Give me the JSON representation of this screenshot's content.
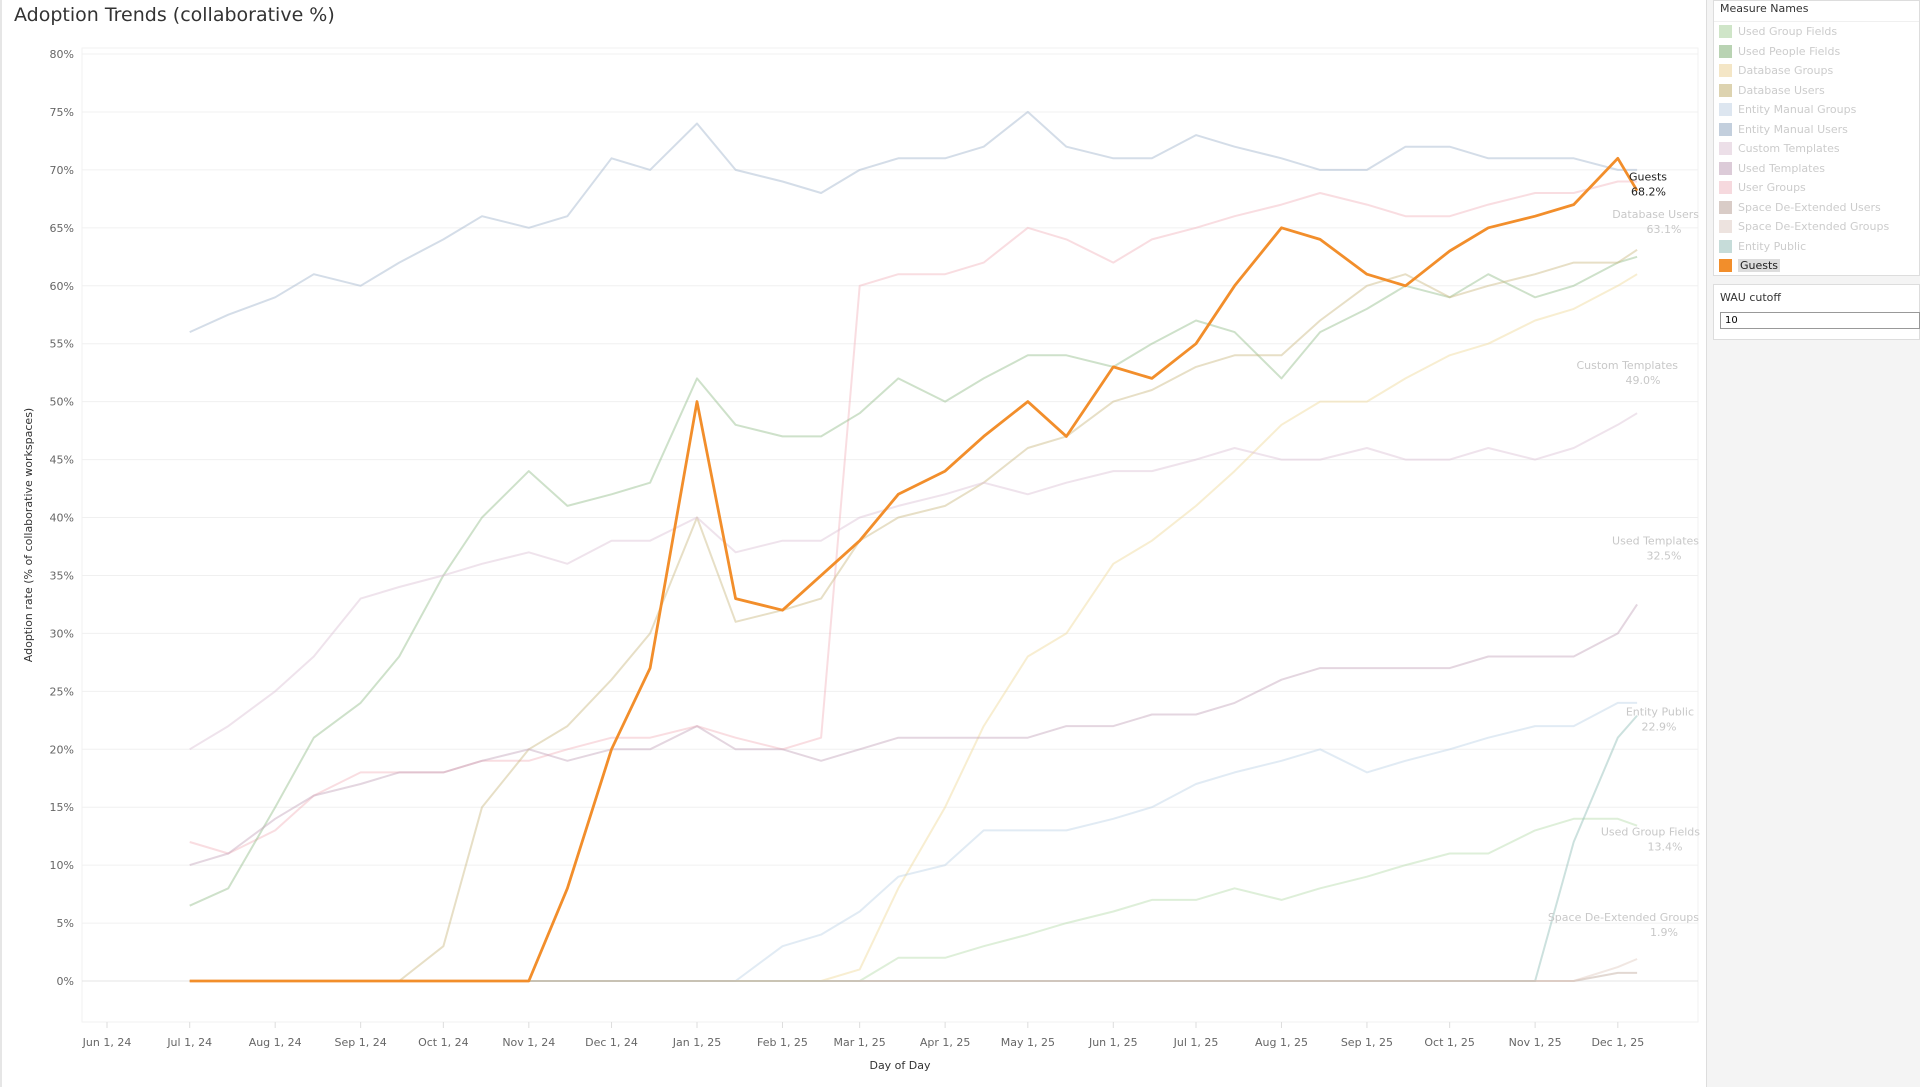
{
  "title": "Adoption Trends (collaborative %)",
  "legend": {
    "title": "Measure Names",
    "items": [
      {
        "label": "Used Group Fields",
        "color": "#cfe5c8"
      },
      {
        "label": "Used People Fields",
        "color": "#b9d3b3"
      },
      {
        "label": "Database Groups",
        "color": "#f4e6c6"
      },
      {
        "label": "Database Users",
        "color": "#ddd3b0"
      },
      {
        "label": "Entity Manual Groups",
        "color": "#dde6f0"
      },
      {
        "label": "Entity Manual Users",
        "color": "#c3cfdd"
      },
      {
        "label": "Custom Templates",
        "color": "#ecdfe8"
      },
      {
        "label": "Used Templates",
        "color": "#dccbd8"
      },
      {
        "label": "User Groups",
        "color": "#f6d9de"
      },
      {
        "label": "Space De-Extended Users",
        "color": "#d9ccc7"
      },
      {
        "label": "Space De-Extended Groups",
        "color": "#ede3df"
      },
      {
        "label": "Entity Public",
        "color": "#c6dcd9"
      },
      {
        "label": "Guests",
        "color": "#f28e2b"
      }
    ]
  },
  "wau": {
    "title": "WAU cutoff",
    "value": "10"
  },
  "chart_data": {
    "type": "line",
    "title": "Adoption Trends (collaborative %)",
    "xlabel": "Day of Day",
    "ylabel": "Adoption rate (% of collaborative workspaces)",
    "ylim": [
      -4,
      80
    ],
    "yticks": [
      "0%",
      "5%",
      "10%",
      "15%",
      "20%",
      "25%",
      "30%",
      "35%",
      "40%",
      "45%",
      "50%",
      "55%",
      "60%",
      "65%",
      "70%",
      "75%",
      "80%"
    ],
    "xticks": [
      {
        "date": "2024-06-01",
        "label": "Jun 1, 24"
      },
      {
        "date": "2024-07-01",
        "label": "Jul 1, 24"
      },
      {
        "date": "2024-08-01",
        "label": "Aug 1, 24"
      },
      {
        "date": "2024-09-01",
        "label": "Sep 1, 24"
      },
      {
        "date": "2024-10-01",
        "label": "Oct 1, 24"
      },
      {
        "date": "2024-11-01",
        "label": "Nov 1, 24"
      },
      {
        "date": "2024-12-01",
        "label": "Dec 1, 24"
      },
      {
        "date": "2025-01-01",
        "label": "Jan 1, 25"
      },
      {
        "date": "2025-02-01",
        "label": "Feb 1, 25"
      },
      {
        "date": "2025-03-01",
        "label": "Mar 1, 25"
      },
      {
        "date": "2025-04-01",
        "label": "Apr 1, 25"
      },
      {
        "date": "2025-05-01",
        "label": "May 1, 25"
      },
      {
        "date": "2025-06-01",
        "label": "Jun 1, 25"
      },
      {
        "date": "2025-07-01",
        "label": "Jul 1, 25"
      },
      {
        "date": "2025-08-01",
        "label": "Aug 1, 25"
      },
      {
        "date": "2025-09-01",
        "label": "Sep 1, 25"
      },
      {
        "date": "2025-10-01",
        "label": "Oct 1, 25"
      },
      {
        "date": "2025-11-01",
        "label": "Nov 1, 25"
      },
      {
        "date": "2025-12-01",
        "label": "Dec 1, 25"
      }
    ],
    "x": [
      "2024-07-01",
      "2024-07-15",
      "2024-08-01",
      "2024-08-15",
      "2024-09-01",
      "2024-09-15",
      "2024-10-01",
      "2024-10-15",
      "2024-11-01",
      "2024-11-15",
      "2024-12-01",
      "2024-12-15",
      "2025-01-01",
      "2025-01-15",
      "2025-02-01",
      "2025-02-15",
      "2025-03-01",
      "2025-03-15",
      "2025-04-01",
      "2025-04-15",
      "2025-05-01",
      "2025-05-15",
      "2025-06-01",
      "2025-06-15",
      "2025-07-01",
      "2025-07-15",
      "2025-08-01",
      "2025-08-15",
      "2025-09-01",
      "2025-09-15",
      "2025-10-01",
      "2025-10-15",
      "2025-11-01",
      "2025-11-15",
      "2025-12-01",
      "2025-12-08"
    ],
    "series": [
      {
        "name": "Entity Manual Users",
        "color": "#9fb3cc",
        "highlight": false,
        "values": [
          56,
          57.5,
          59,
          61,
          60,
          62,
          64,
          66,
          65,
          66,
          71,
          70,
          74,
          70,
          69,
          68,
          70,
          71,
          71,
          72,
          75,
          72,
          71,
          71,
          73,
          72,
          71,
          70,
          70,
          72,
          72,
          71,
          71,
          71,
          70,
          70
        ]
      },
      {
        "name": "User Groups",
        "color": "#f2b3bd",
        "highlight": false,
        "values": [
          12,
          11,
          13,
          16,
          18,
          18,
          18,
          19,
          19,
          20,
          21,
          21,
          22,
          21,
          20,
          21,
          60,
          61,
          61,
          62,
          65,
          64,
          62,
          64,
          65,
          66,
          67,
          68,
          67,
          66,
          66,
          67,
          68,
          68,
          69,
          69
        ]
      },
      {
        "name": "Used People Fields",
        "color": "#93bd8a",
        "highlight": false,
        "values": [
          6.5,
          8,
          15,
          21,
          24,
          28,
          35,
          40,
          44,
          41,
          42,
          43,
          52,
          48,
          47,
          47,
          49,
          52,
          50,
          52,
          54,
          54,
          53,
          55,
          57,
          56,
          52,
          56,
          58,
          60,
          59,
          61,
          59,
          60,
          62,
          62.5
        ]
      },
      {
        "name": "Database Users",
        "color": "#c9b981",
        "highlight": false,
        "values": [
          0,
          0,
          0,
          0,
          0,
          0,
          3,
          15,
          20,
          22,
          26,
          30,
          40,
          31,
          32,
          33,
          38,
          40,
          41,
          43,
          46,
          47,
          50,
          51,
          53,
          54,
          54,
          57,
          60,
          61,
          59,
          60,
          61,
          62,
          62,
          63.1
        ]
      },
      {
        "name": "Database Groups",
        "color": "#f0d99a",
        "highlight": false,
        "values": [
          0,
          0,
          0,
          0,
          0,
          0,
          0,
          0,
          0,
          0,
          0,
          0,
          0,
          0,
          0,
          0,
          1,
          8,
          15,
          22,
          28,
          30,
          36,
          38,
          41,
          44,
          48,
          50,
          50,
          52,
          54,
          55,
          57,
          58,
          60,
          61
        ]
      },
      {
        "name": "Custom Templates",
        "color": "#dcc0d4",
        "highlight": false,
        "values": [
          20,
          22,
          25,
          28,
          33,
          34,
          35,
          36,
          37,
          36,
          38,
          38,
          40,
          37,
          38,
          38,
          40,
          41,
          42,
          43,
          42,
          43,
          44,
          44,
          45,
          46,
          45,
          45,
          46,
          45,
          45,
          46,
          45,
          46,
          48,
          49.0
        ]
      },
      {
        "name": "Used Templates",
        "color": "#c4a3bb",
        "highlight": false,
        "values": [
          10,
          11,
          14,
          16,
          17,
          18,
          18,
          19,
          20,
          19,
          20,
          20,
          22,
          20,
          20,
          19,
          20,
          21,
          21,
          21,
          21,
          22,
          22,
          23,
          23,
          24,
          26,
          27,
          27,
          27,
          27,
          28,
          28,
          28,
          30,
          32.5
        ]
      },
      {
        "name": "Entity Manual Groups",
        "color": "#bcd2e6",
        "highlight": false,
        "values": [
          0,
          0,
          0,
          0,
          0,
          0,
          0,
          0,
          0,
          0,
          0,
          0,
          0,
          0,
          3,
          4,
          6,
          9,
          10,
          13,
          13,
          13,
          14,
          15,
          17,
          18,
          19,
          20,
          18,
          19,
          20,
          21,
          22,
          22,
          24,
          24
        ]
      },
      {
        "name": "Used Group Fields",
        "color": "#b6dbab",
        "highlight": false,
        "values": [
          0,
          0,
          0,
          0,
          0,
          0,
          0,
          0,
          0,
          0,
          0,
          0,
          0,
          0,
          0,
          0,
          0,
          2,
          2,
          3,
          4,
          5,
          6,
          7,
          7,
          8,
          7,
          8,
          9,
          10,
          11,
          11,
          13,
          14,
          14,
          13.4
        ]
      },
      {
        "name": "Entity Public",
        "color": "#8fbcb6",
        "highlight": false,
        "values": [
          0,
          0,
          0,
          0,
          0,
          0,
          0,
          0,
          0,
          0,
          0,
          0,
          0,
          0,
          0,
          0,
          0,
          0,
          0,
          0,
          0,
          0,
          0,
          0,
          0,
          0,
          0,
          0,
          0,
          0,
          0,
          0,
          0,
          12,
          21,
          22.9
        ]
      },
      {
        "name": "Space De-Extended Users",
        "color": "#bfa89c",
        "highlight": false,
        "values": [
          0,
          0,
          0,
          0,
          0,
          0,
          0,
          0,
          0,
          0,
          0,
          0,
          0,
          0,
          0,
          0,
          0,
          0,
          0,
          0,
          0,
          0,
          0,
          0,
          0,
          0,
          0,
          0,
          0,
          0,
          0,
          0,
          0,
          0,
          0.7,
          0.7
        ]
      },
      {
        "name": "Space De-Extended Groups",
        "color": "#e0c9bf",
        "highlight": false,
        "values": [
          0,
          0,
          0,
          0,
          0,
          0,
          0,
          0,
          0,
          0,
          0,
          0,
          0,
          0,
          0,
          0,
          0,
          0,
          0,
          0,
          0,
          0,
          0,
          0,
          0,
          0,
          0,
          0,
          0,
          0,
          0,
          0,
          0,
          0,
          1.2,
          1.9
        ]
      },
      {
        "name": "Guests",
        "color": "#f28e2b",
        "highlight": true,
        "values": [
          0,
          0,
          0,
          0,
          0,
          0,
          0,
          0,
          0,
          8,
          20,
          27,
          50,
          33,
          32,
          35,
          38,
          42,
          44,
          47,
          50,
          47,
          53,
          52,
          55,
          60,
          65,
          64,
          61,
          60,
          63,
          65,
          66,
          67,
          71,
          68.2
        ]
      }
    ],
    "end_labels": [
      {
        "series": "Guests",
        "name": "Guests",
        "value": "68.2%"
      },
      {
        "series": "Database Users",
        "name": "Database Users",
        "value": "63.1%"
      },
      {
        "series": "Custom Templates",
        "name": "Custom Templates",
        "value": "49.0%"
      },
      {
        "series": "Used Templates",
        "name": "Used Templates",
        "value": "32.5%"
      },
      {
        "series": "Entity Public",
        "name": "Entity Public",
        "value": "22.9%"
      },
      {
        "series": "Used Group Fields",
        "name": "Used Group Fields",
        "value": "13.4%"
      },
      {
        "series": "Space De-Extended Groups",
        "name": "Space De-Extended Groups",
        "value": "1.9%"
      }
    ]
  }
}
